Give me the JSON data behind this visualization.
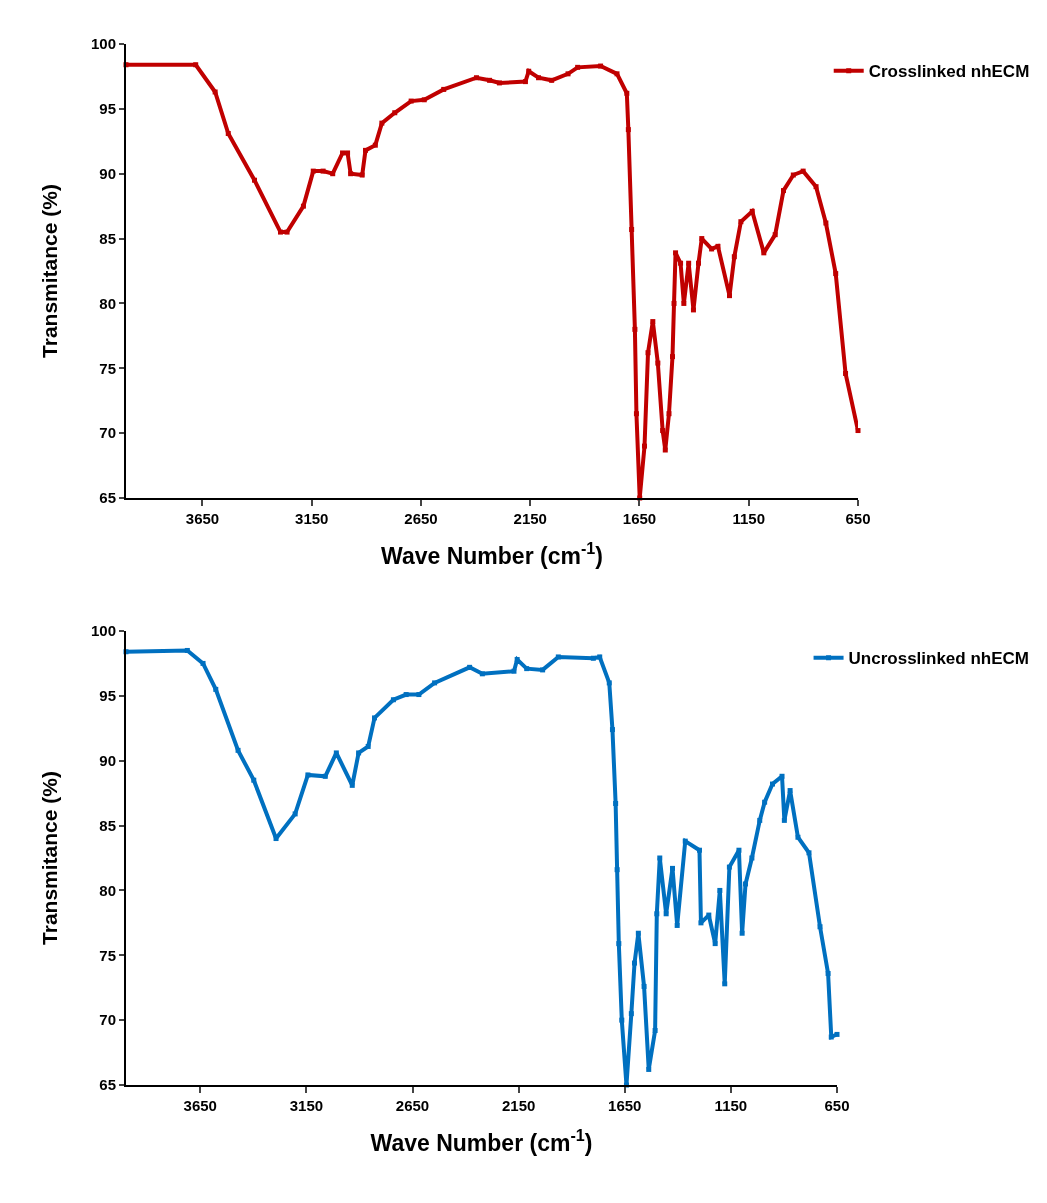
{
  "chart_data": [
    {
      "type": "line",
      "xlabel": "Wave Number (cm$^{-1}$)",
      "ylabel": "Transmitance (%)",
      "xlim": [
        4000,
        650
      ],
      "xticks": [
        3650,
        3150,
        2650,
        2150,
        1650,
        1150,
        650
      ],
      "ylim": [
        65,
        100
      ],
      "yticks": [
        65,
        70,
        75,
        80,
        85,
        90,
        95,
        100
      ],
      "grid": false,
      "legend": "top right",
      "marker": "square",
      "line_style": "solid",
      "series": [
        {
          "name": "Crosslinked nhECM",
          "color": "#c00000",
          "x": [
            4000,
            3681,
            3592,
            3532,
            3412,
            3293,
            3263,
            3188,
            3143,
            3098,
            3054,
            3009,
            2986,
            2972,
            2919,
            2904,
            2859,
            2829,
            2770,
            2695,
            2635,
            2546,
            2396,
            2336,
            2291,
            2172,
            2157,
            2112,
            2052,
            1977,
            1933,
            1828,
            1753,
            1708,
            1701,
            1686,
            1671,
            1664,
            1649,
            1627,
            1611,
            1589,
            1566,
            1544,
            1532,
            1515,
            1499,
            1492,
            1485,
            1462,
            1447,
            1425,
            1403,
            1380,
            1365,
            1320,
            1291,
            1238,
            1216,
            1186,
            1134,
            1081,
            1029,
            991,
            946,
            901,
            842,
            797,
            752,
            707,
            650
          ],
          "values": [
            98.4,
            98.4,
            96.3,
            93.1,
            89.5,
            85.5,
            85.5,
            87.5,
            90.2,
            90.2,
            90.0,
            91.6,
            91.6,
            90.0,
            89.9,
            91.8,
            92.2,
            93.9,
            94.7,
            95.6,
            95.7,
            96.5,
            97.4,
            97.2,
            97.0,
            97.1,
            97.9,
            97.4,
            97.2,
            97.7,
            98.2,
            98.3,
            97.7,
            96.2,
            93.4,
            85.7,
            78.0,
            71.5,
            65.0,
            69.0,
            76.2,
            78.6,
            75.4,
            70.2,
            68.7,
            71.5,
            75.9,
            80.0,
            83.9,
            83.1,
            80.0,
            83.1,
            79.5,
            83.1,
            85.0,
            84.2,
            84.4,
            80.6,
            83.6,
            86.3,
            87.1,
            83.9,
            85.3,
            88.7,
            89.9,
            90.2,
            89.0,
            86.2,
            82.3,
            74.6,
            70.2
          ]
        }
      ]
    },
    {
      "type": "line",
      "xlabel": "Wave Number (cm$^{-1}$)",
      "ylabel": "Transmitance (%)",
      "xlim": [
        4000,
        650
      ],
      "xticks": [
        3650,
        3150,
        2650,
        2150,
        1650,
        1150,
        650
      ],
      "ylim": [
        65,
        100
      ],
      "yticks": [
        65,
        70,
        75,
        80,
        85,
        90,
        95,
        100
      ],
      "grid": false,
      "legend": "top right",
      "marker": "square",
      "line_style": "solid",
      "series": [
        {
          "name": "Uncrosslinked nhECM",
          "color": "#0070c0",
          "x": [
            4000,
            3711,
            3637,
            3577,
            3472,
            3398,
            3293,
            3203,
            3143,
            3061,
            3009,
            2934,
            2904,
            2859,
            2829,
            2740,
            2680,
            2620,
            2546,
            2381,
            2321,
            2172,
            2157,
            2112,
            2037,
            1963,
            1798,
            1768,
            1723,
            1708,
            1693,
            1686,
            1678,
            1664,
            1642,
            1619,
            1604,
            1586,
            1559,
            1537,
            1507,
            1499,
            1485,
            1455,
            1425,
            1403,
            1365,
            1298,
            1291,
            1254,
            1224,
            1202,
            1179,
            1157,
            1112,
            1097,
            1081,
            1051,
            1014,
            991,
            954,
            909,
            898,
            871,
            834,
            782,
            730,
            692,
            677,
            650
          ],
          "values": [
            98.4,
            98.5,
            97.5,
            95.5,
            90.8,
            88.5,
            84.0,
            85.9,
            88.9,
            88.8,
            90.6,
            88.1,
            90.6,
            91.1,
            93.3,
            94.7,
            95.1,
            95.1,
            96.0,
            97.2,
            96.7,
            96.9,
            97.8,
            97.1,
            97.0,
            98.0,
            97.9,
            98.0,
            96.0,
            92.4,
            86.7,
            81.6,
            75.9,
            70.0,
            65.0,
            70.5,
            74.4,
            76.7,
            72.6,
            66.2,
            69.2,
            78.2,
            82.5,
            78.2,
            81.7,
            77.3,
            83.8,
            83.1,
            77.5,
            78.1,
            75.9,
            80.0,
            72.8,
            81.8,
            83.1,
            76.7,
            80.5,
            82.5,
            85.4,
            86.8,
            88.2,
            88.8,
            85.4,
            87.7,
            84.1,
            82.9,
            77.2,
            73.6,
            68.7,
            68.9
          ]
        }
      ]
    }
  ]
}
